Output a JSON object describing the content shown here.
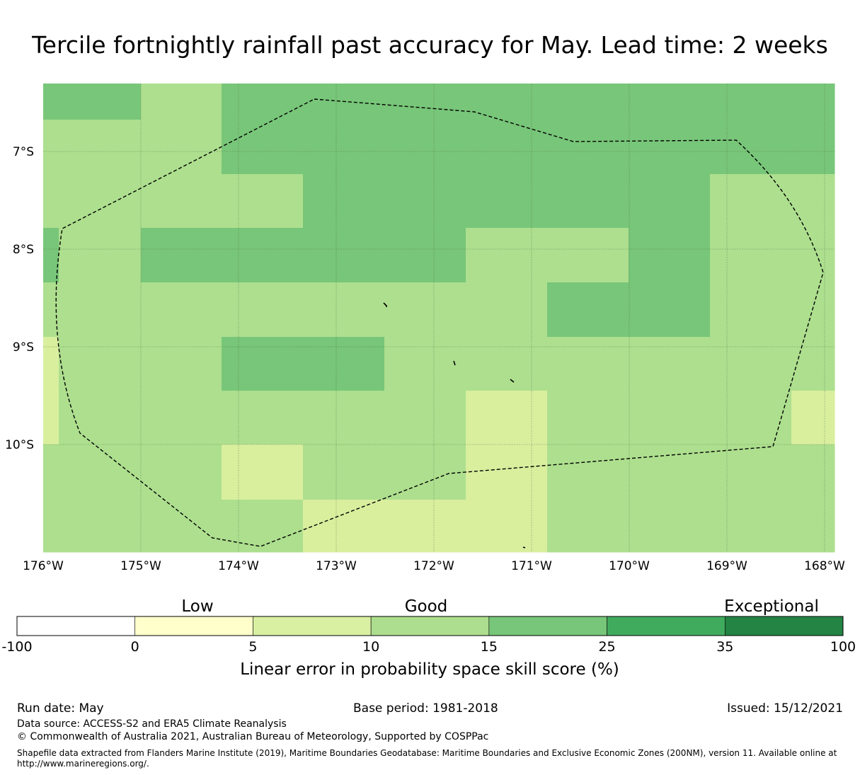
{
  "title": "Tercile fortnightly rainfall past accuracy for May. Lead time: 2 weeks",
  "map": {
    "lat_ticks": [
      "7°S",
      "8°S",
      "9°S",
      "10°S"
    ],
    "lon_ticks": [
      "176°W",
      "175°W",
      "174°W",
      "173°W",
      "172°W",
      "171°W",
      "170°W",
      "169°W",
      "168°W"
    ],
    "lon_range": [
      -176,
      -167.9
    ],
    "lat_range": [
      -6.3,
      -11.1
    ],
    "boundary_style": "dashed",
    "grid": true,
    "cell_size_deg": [
      0.833,
      0.555
    ],
    "cell_columns_lon_start": [
      -176.0,
      -175.8,
      -175.0,
      -174.2,
      -173.3,
      -172.5,
      -171.7,
      -170.8,
      -170.0,
      -169.2,
      -168.3
    ],
    "cell_rows_lat_start": [
      -6.3,
      -6.67,
      -7.22,
      -7.78,
      -8.33,
      -8.89,
      -9.44,
      -10.0,
      -10.56
    ],
    "classes": [
      "0-5",
      "5-10",
      "10-15",
      "15-25"
    ],
    "class_colors": {
      "5-10": "#d9ef9e",
      "10-15": "#addf8e",
      "15-25": "#78c679"
    }
  },
  "legend": {
    "categories": [
      "Low",
      "Good",
      "Exceptional"
    ],
    "bins": [
      {
        "range": "-100 to 0",
        "color": "#ffffff"
      },
      {
        "range": "0 to 5",
        "color": "#ffffcc"
      },
      {
        "range": "5 to 10",
        "color": "#d9f0a3"
      },
      {
        "range": "10 to 15",
        "color": "#addd8e"
      },
      {
        "range": "15 to 25",
        "color": "#78c679"
      },
      {
        "range": "25 to 35",
        "color": "#41ab5d"
      },
      {
        "range": "35 to 100",
        "color": "#238443"
      }
    ],
    "tick_labels": [
      "-100",
      "0",
      "5",
      "10",
      "15",
      "25",
      "35",
      "100"
    ],
    "label": "Linear error in probability space skill score (%)"
  },
  "footer": {
    "run_date": "Run date: May",
    "base_period": "Base period: 1981-2018",
    "issued": "Issued: 15/12/2021",
    "data_source": "Data source: ACCESS-S2 and ERA5 Climate Reanalysis",
    "copyright": "© Commonwealth of Australia 2021, Australian Bureau of Meteorology, Supported by COSPPac",
    "shapefile_line1": "Shapefile data extracted from Flanders Marine Institute (2019), Maritime Boundaries Geodatabase: Maritime Boundaries and Exclusive Economic Zones (200NM), version 11. Available online at",
    "shapefile_line2": "http://www.marineregions.org/."
  }
}
